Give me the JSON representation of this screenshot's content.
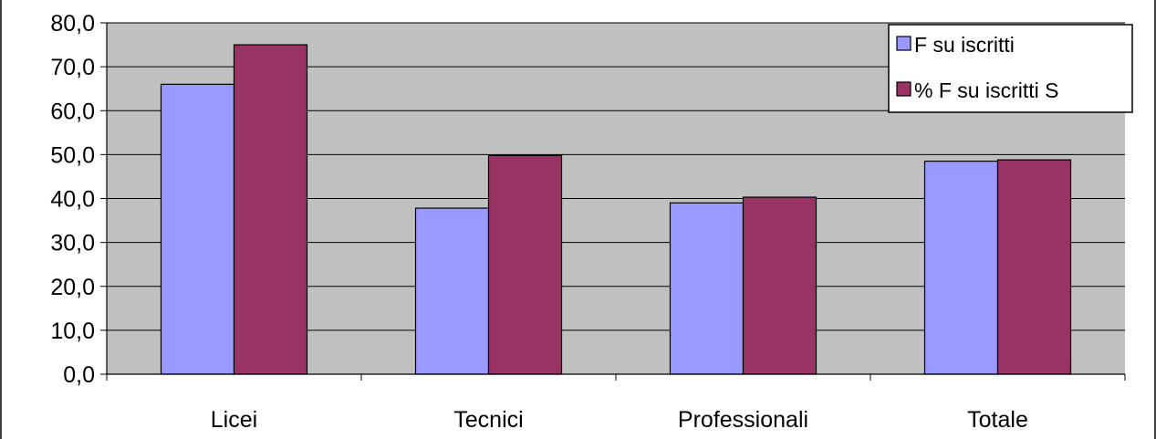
{
  "chart_data": {
    "type": "bar",
    "categories": [
      "Licei",
      "Tecnici",
      "Professionali",
      "Totale"
    ],
    "series": [
      {
        "name": "F su iscritti",
        "values": [
          66.0,
          37.8,
          39.0,
          48.5
        ],
        "color": "#9999ff"
      },
      {
        "name": "% F su iscritti S",
        "values": [
          75.0,
          49.8,
          40.3,
          48.8
        ],
        "color": "#993366"
      }
    ],
    "ylim": [
      0,
      80
    ],
    "yticks": [
      "0,0",
      "10,0",
      "20,0",
      "30,0",
      "40,0",
      "50,0",
      "60,0",
      "70,0",
      "80,0"
    ],
    "ytick_values": [
      0,
      10,
      20,
      30,
      40,
      50,
      60,
      70,
      80
    ],
    "grid": true,
    "plot_background": "#c0c0c0",
    "legend_position": "top-right"
  }
}
